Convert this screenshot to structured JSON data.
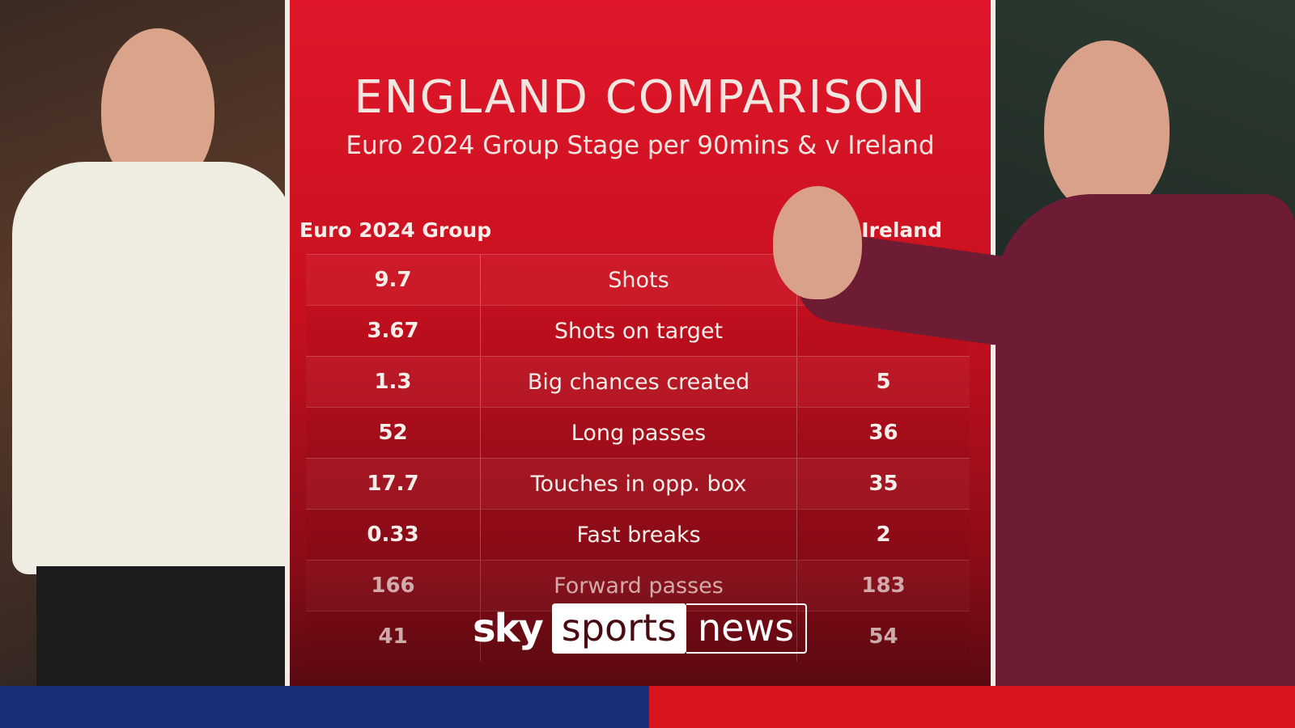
{
  "title": "ENGLAND COMPARISON",
  "subtitle": "Euro 2024 Group Stage per 90mins & v Ireland",
  "columns": {
    "left": "Euro 2024 Group",
    "right": "v Ireland"
  },
  "rows": [
    {
      "euro": "9.7",
      "stat": "Shots",
      "ireland": ""
    },
    {
      "euro": "3.67",
      "stat": "Shots on target",
      "ireland": ""
    },
    {
      "euro": "1.3",
      "stat": "Big chances created",
      "ireland": "5"
    },
    {
      "euro": "52",
      "stat": "Long passes",
      "ireland": "36"
    },
    {
      "euro": "17.7",
      "stat": "Touches in opp. box",
      "ireland": "35"
    },
    {
      "euro": "0.33",
      "stat": "Fast breaks",
      "ireland": "2"
    },
    {
      "euro": "166",
      "stat": "Forward passes",
      "ireland": "183"
    },
    {
      "euro": "41",
      "stat": "",
      "ireland": "54"
    }
  ],
  "logo": {
    "sky": "sky",
    "sports": "sports",
    "news": "news"
  },
  "colors": {
    "panel_red": "#d8141e",
    "bar_blue": "#1a2f7a",
    "bar_red": "#d8141e"
  }
}
